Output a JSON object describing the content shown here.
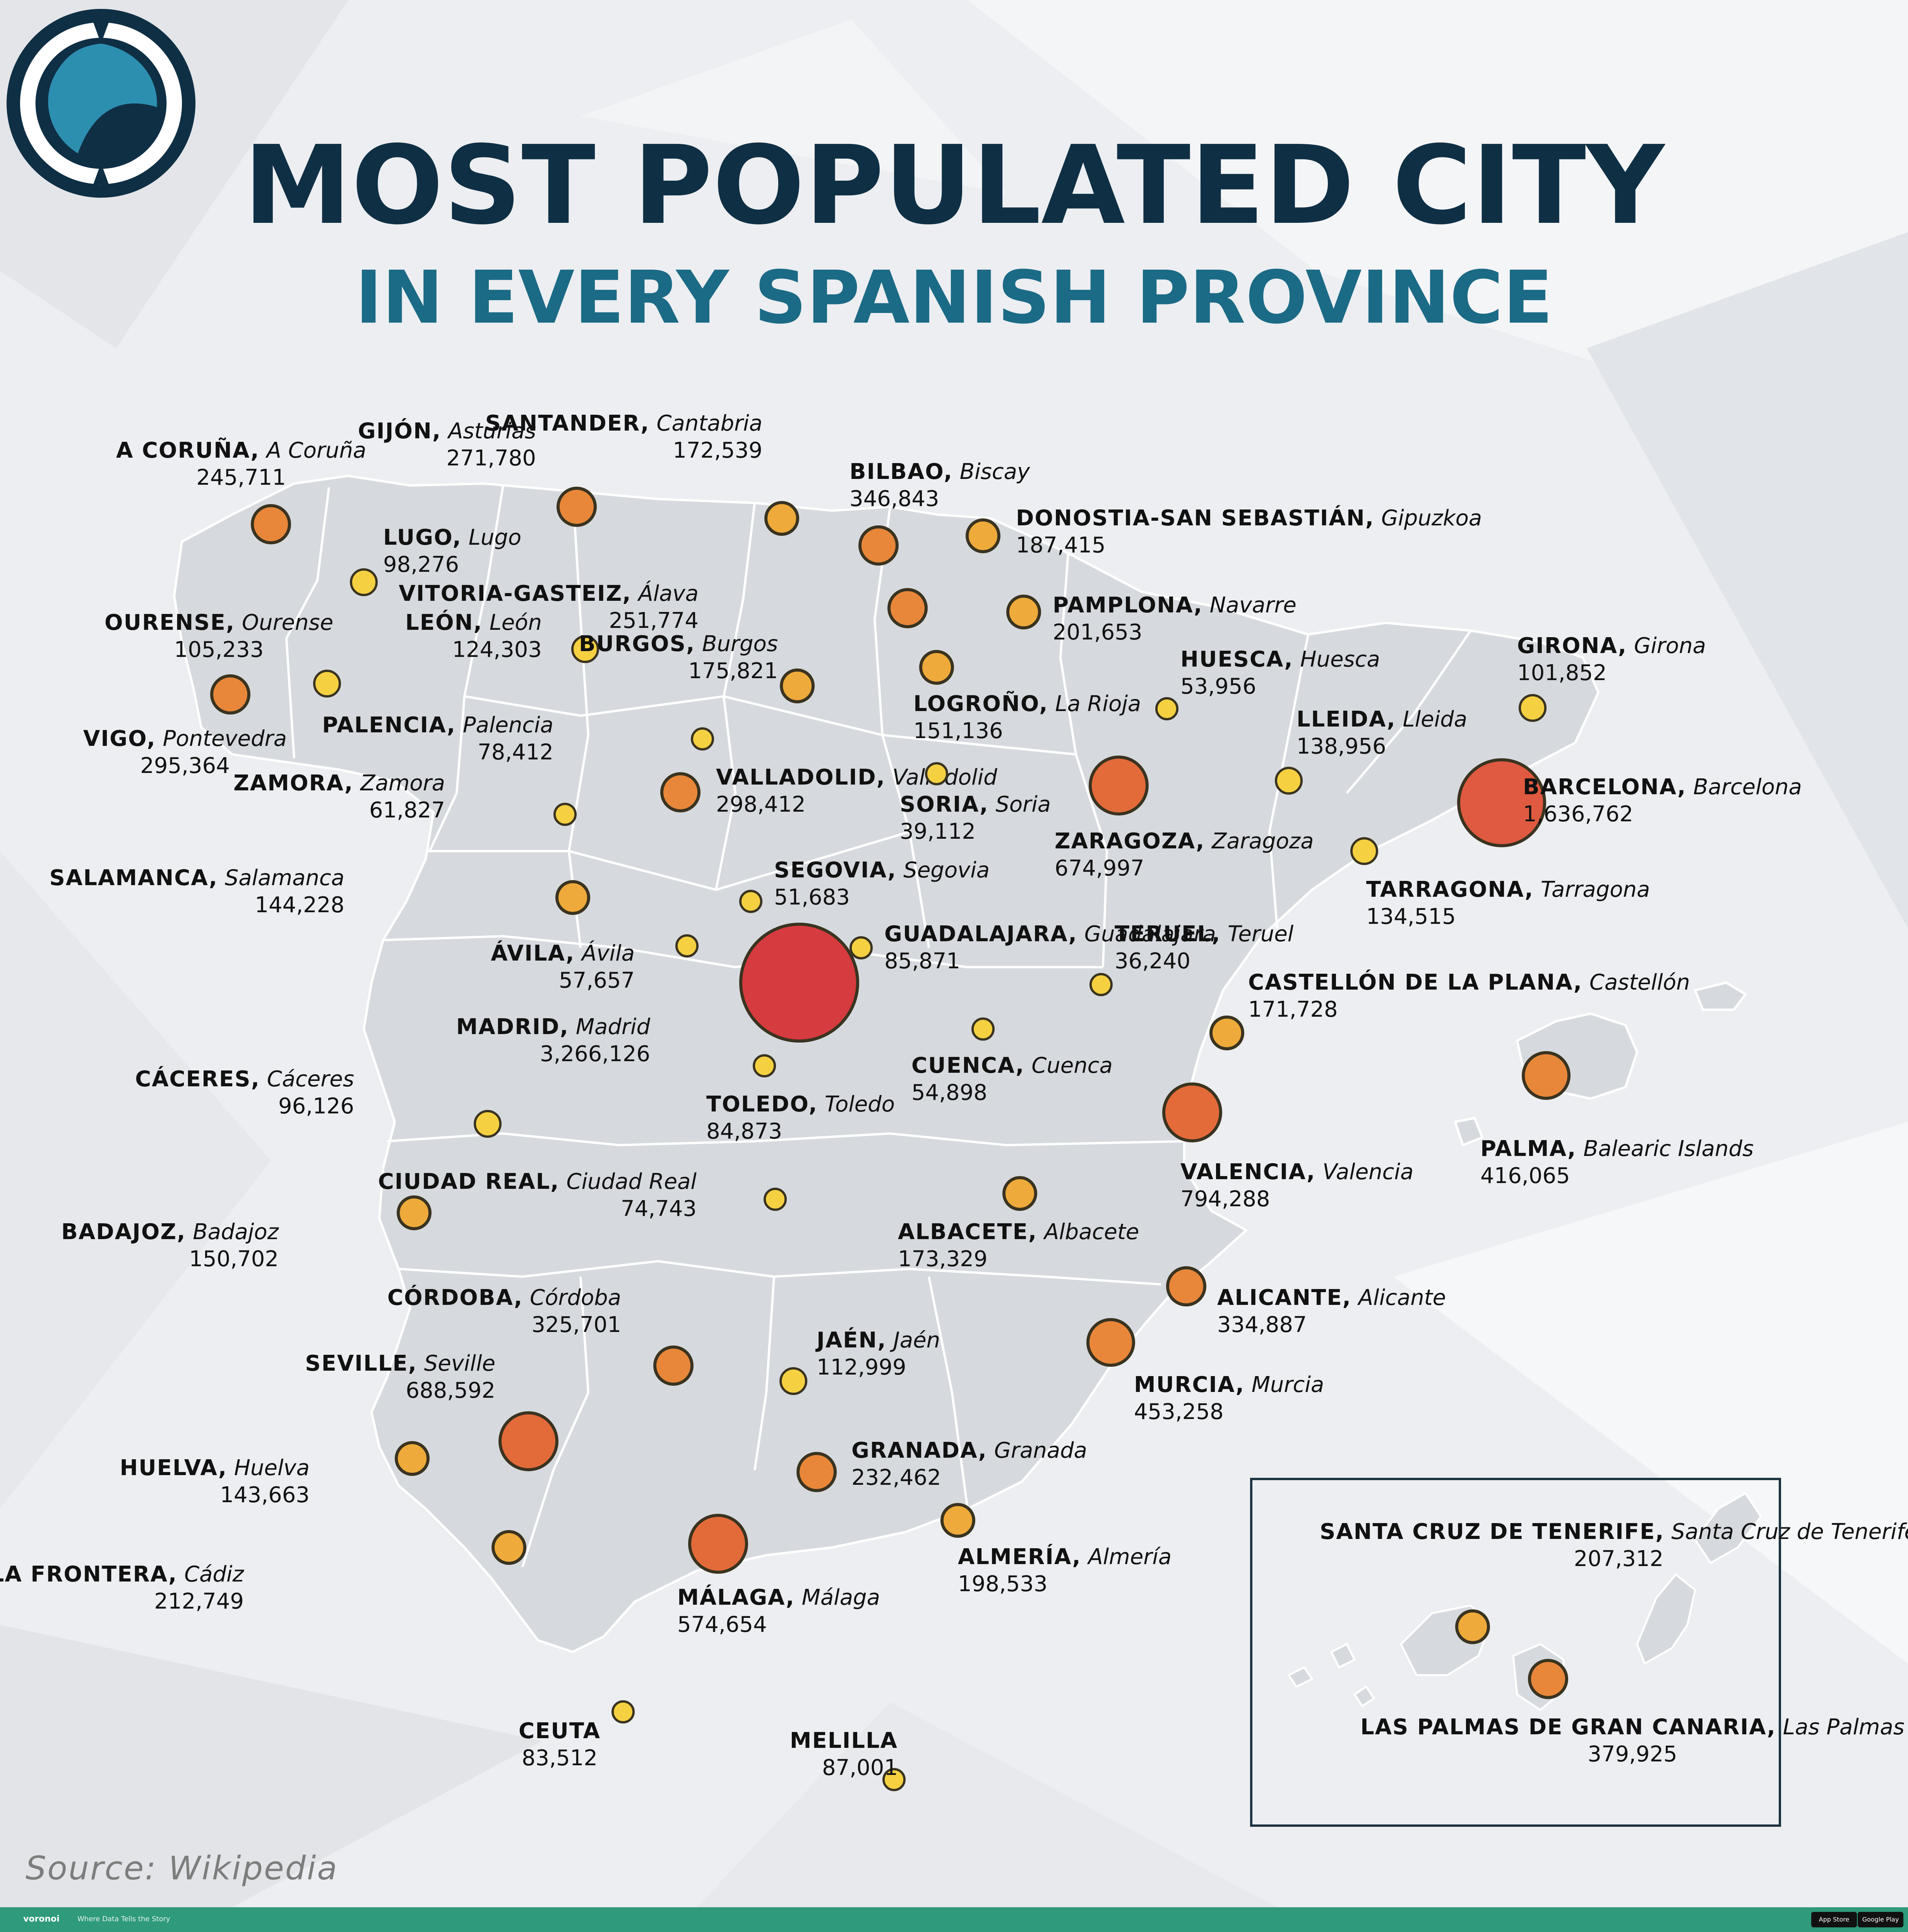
{
  "title": "MOST POPULATED CITY",
  "subtitle": "IN EVERY SPANISH PROVINCE",
  "source": "Source: Wikipedia",
  "footer": {
    "brand": "voronoi",
    "tagline": "Where Data Tells the Story",
    "app_store": "App Store",
    "google_play": "Google Play"
  },
  "colors": {
    "small": "#f5d142",
    "medium": "#eeaa3a",
    "large": "#e8873a",
    "xlarge": "#e36b3a",
    "xxlarge": "#df5a40",
    "capital": "#d63b3f",
    "title_dark": "#0f2f44",
    "title_teal": "#1b6a86",
    "land": "#d6dade"
  },
  "cities": [
    {
      "city": "A CORUÑA,",
      "province": "A Coruña",
      "population": "245,711",
      "value": 245711
    },
    {
      "city": "GIJÓN,",
      "province": "Asturias",
      "population": "271,780",
      "value": 271780
    },
    {
      "city": "SANTANDER,",
      "province": "Cantabria",
      "population": "172,539",
      "value": 172539
    },
    {
      "city": "BILBAO,",
      "province": "Biscay",
      "population": "346,843",
      "value": 346843
    },
    {
      "city": "DONOSTIA-SAN SEBASTIÁN,",
      "province": "Gipuzkoa",
      "population": "187,415",
      "value": 187415
    },
    {
      "city": "LUGO,",
      "province": "Lugo",
      "population": "98,276",
      "value": 98276
    },
    {
      "city": "OURENSE,",
      "province": "Ourense",
      "population": "105,233",
      "value": 105233
    },
    {
      "city": "LEÓN,",
      "province": "León",
      "population": "124,303",
      "value": 124303
    },
    {
      "city": "VITORIA-GASTEIZ,",
      "province": "Álava",
      "population": "251,774",
      "value": 251774
    },
    {
      "city": "PAMPLONA,",
      "province": "Navarre",
      "population": "201,653",
      "value": 201653
    },
    {
      "city": "BURGOS,",
      "province": "Burgos",
      "population": "175,821",
      "value": 175821
    },
    {
      "city": "HUESCA,",
      "province": "Huesca",
      "population": "53,956",
      "value": 53956
    },
    {
      "city": "GIRONA,",
      "province": "Girona",
      "population": "101,852",
      "value": 101852
    },
    {
      "city": "VIGO,",
      "province": "Pontevedra",
      "population": "295,364",
      "value": 295364
    },
    {
      "city": "PALENCIA,",
      "province": "Palencia",
      "population": "78,412",
      "value": 78412
    },
    {
      "city": "LOGROÑO,",
      "province": "La Rioja",
      "population": "151,136",
      "value": 151136
    },
    {
      "city": "LLEIDA,",
      "province": "Lleida",
      "population": "138,956",
      "value": 138956
    },
    {
      "city": "ZAMORA,",
      "province": "Zamora",
      "population": "61,827",
      "value": 61827
    },
    {
      "city": "VALLADOLID,",
      "province": "Valladolid",
      "population": "298,412",
      "value": 298412
    },
    {
      "city": "SORIA,",
      "province": "Soria",
      "population": "39,112",
      "value": 39112
    },
    {
      "city": "BARCELONA,",
      "province": "Barcelona",
      "population": "1,636,762",
      "value": 1636762
    },
    {
      "city": "ZARAGOZA,",
      "province": "Zaragoza",
      "population": "674,997",
      "value": 674997
    },
    {
      "city": "SALAMANCA,",
      "province": "Salamanca",
      "population": "144,228",
      "value": 144228
    },
    {
      "city": "SEGOVIA,",
      "province": "Segovia",
      "population": "51,683",
      "value": 51683
    },
    {
      "city": "TARRAGONA,",
      "province": "Tarragona",
      "population": "134,515",
      "value": 134515
    },
    {
      "city": "ÁVILA,",
      "province": "Ávila",
      "population": "57,657",
      "value": 57657
    },
    {
      "city": "GUADALAJARA,",
      "province": "Guadalajara",
      "population": "85,871",
      "value": 85871
    },
    {
      "city": "TERUEL,",
      "province": "Teruel",
      "population": "36,240",
      "value": 36240
    },
    {
      "city": "CASTELLÓN DE LA PLANA,",
      "province": "Castellón",
      "population": "171,728",
      "value": 171728
    },
    {
      "city": "MADRID,",
      "province": "Madrid",
      "population": "3,266,126",
      "value": 3266126
    },
    {
      "city": "CUENCA,",
      "province": "Cuenca",
      "population": "54,898",
      "value": 54898
    },
    {
      "city": "CÁCERES,",
      "province": "Cáceres",
      "population": "96,126",
      "value": 96126
    },
    {
      "city": "TOLEDO,",
      "province": "Toledo",
      "population": "84,873",
      "value": 84873
    },
    {
      "city": "PALMA,",
      "province": "Balearic Islands",
      "population": "416,065",
      "value": 416065
    },
    {
      "city": "VALENCIA,",
      "province": "Valencia",
      "population": "794,288",
      "value": 794288
    },
    {
      "city": "CIUDAD REAL,",
      "province": "Ciudad Real",
      "population": "74,743",
      "value": 74743
    },
    {
      "city": "BADAJOZ,",
      "province": "Badajoz",
      "population": "150,702",
      "value": 150702
    },
    {
      "city": "ALBACETE,",
      "province": "Albacete",
      "population": "173,329",
      "value": 173329
    },
    {
      "city": "CÓRDOBA,",
      "province": "Córdoba",
      "population": "325,701",
      "value": 325701
    },
    {
      "city": "ALICANTE,",
      "province": "Alicante",
      "population": "334,887",
      "value": 334887
    },
    {
      "city": "JAÉN,",
      "province": "Jaén",
      "population": "112,999",
      "value": 112999
    },
    {
      "city": "SEVILLE,",
      "province": "Seville",
      "population": "688,592",
      "value": 688592
    },
    {
      "city": "MURCIA,",
      "province": "Murcia",
      "population": "453,258",
      "value": 453258
    },
    {
      "city": "HUELVA,",
      "province": "Huelva",
      "population": "143,663",
      "value": 143663
    },
    {
      "city": "GRANADA,",
      "province": "Granada",
      "population": "232,462",
      "value": 232462
    },
    {
      "city": "ALMERÍA,",
      "province": "Almería",
      "population": "198,533",
      "value": 198533
    },
    {
      "city": "JEREZ DE LA FRONTERA,",
      "province": "Cádiz",
      "population": "212,749",
      "value": 212749
    },
    {
      "city": "MÁLAGA,",
      "province": "Málaga",
      "population": "574,654",
      "value": 574654
    },
    {
      "city": "CEUTA",
      "province": "",
      "population": "83,512",
      "value": 83512
    },
    {
      "city": "MELILLA",
      "province": "",
      "population": "87,001",
      "value": 87001
    },
    {
      "city": "SANTA CRUZ DE TENERIFE,",
      "province": "Santa Cruz de Tenerife",
      "population": "207,312",
      "value": 207312
    },
    {
      "city": "LAS PALMAS DE GRAN CANARIA,",
      "province": "Las Palmas",
      "population": "379,925",
      "value": 379925
    }
  ]
}
